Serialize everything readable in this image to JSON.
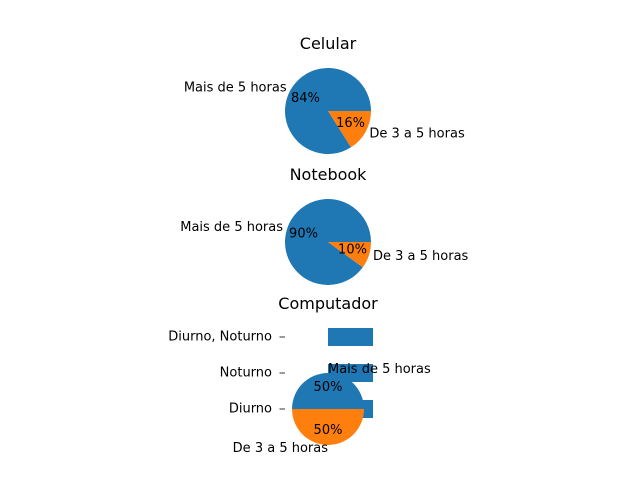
{
  "chart_data": [
    {
      "type": "pie",
      "title": "Celular",
      "slices": [
        {
          "label": "Mais de 5 horas",
          "value": 84,
          "pct_label": "84%",
          "color": "#1f77b4"
        },
        {
          "label": "De 3 a 5 horas",
          "value": 16,
          "pct_label": "16%",
          "color": "#ff7f0e"
        }
      ]
    },
    {
      "type": "pie",
      "title": "Notebook",
      "slices": [
        {
          "label": "Mais de 5 horas",
          "value": 90,
          "pct_label": "90%",
          "color": "#1f77b4"
        },
        {
          "label": "De 3 a 5 horas",
          "value": 10,
          "pct_label": "10%",
          "color": "#ff7f0e"
        }
      ]
    },
    {
      "type": "pie",
      "title": "Computador",
      "slices": [
        {
          "label": "Mais de 5 horas",
          "value": 50,
          "pct_label": "50%",
          "color": "#1f77b4"
        },
        {
          "label": "De 3 a 5 horas",
          "value": 50,
          "pct_label": "50%",
          "color": "#ff7f0e"
        }
      ]
    },
    {
      "type": "bar",
      "orientation": "horizontal",
      "categories": [
        "Diurno",
        "Noturno",
        "Diurno, Noturno"
      ],
      "values": [
        1,
        1,
        1
      ],
      "color": "#1f77b4"
    }
  ]
}
